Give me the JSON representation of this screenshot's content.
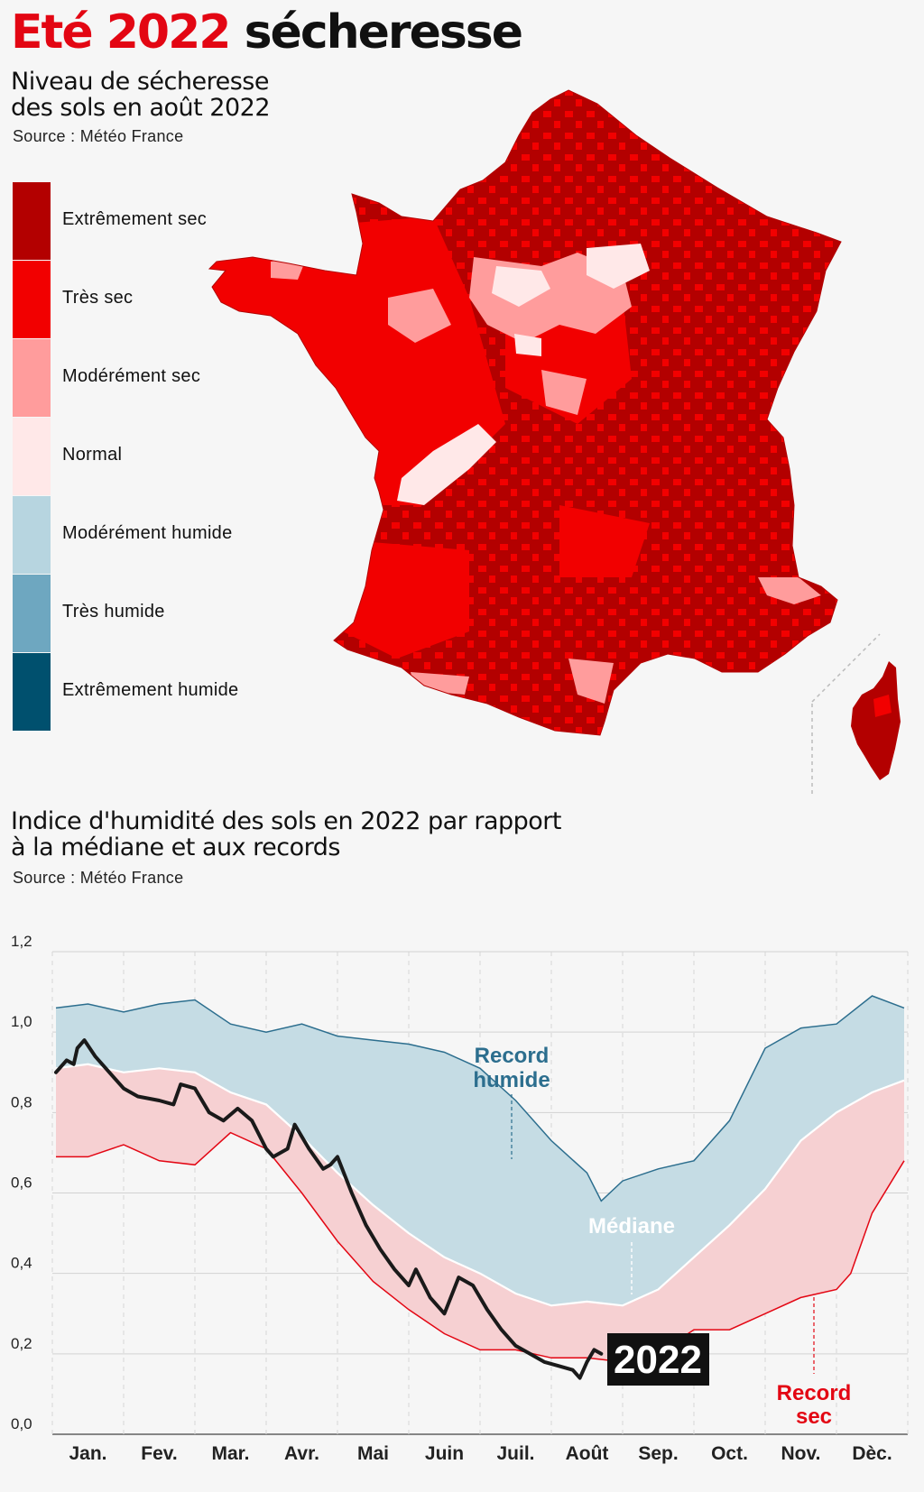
{
  "title": {
    "part1": "Eté 2022",
    "part2": "sécheresse"
  },
  "map_section": {
    "subtitle_line1": "Niveau de sécheresse",
    "subtitle_line2": "des sols  en août 2022",
    "source": "Source : Météo France",
    "legend": [
      {
        "label": "Extrêmement sec",
        "color": "#b30000"
      },
      {
        "label": "Très sec",
        "color": "#f20000"
      },
      {
        "label": "Modérément sec",
        "color": "#ff9c9c"
      },
      {
        "label": "Normal",
        "color": "#ffe8e8"
      },
      {
        "label": "Modérément humide",
        "color": "#b7d5e0"
      },
      {
        "label": "Très humide",
        "color": "#6ea7c0"
      },
      {
        "label": "Extrêmement humide",
        "color": "#00506e"
      }
    ]
  },
  "chart_section": {
    "subtitle_line1": "Indice d'humidité des sols en 2022 par rapport",
    "subtitle_line2": "à la médiane et aux records",
    "source": "Source : Météo France"
  },
  "chart_data": {
    "type": "area",
    "title": "Indice d'humidité des sols en 2022 par rapport à la médiane et aux records",
    "categories": [
      "Jan.",
      "Fev.",
      "Mar.",
      "Avr.",
      "Mai",
      "Juin",
      "Juil.",
      "Août",
      "Sep.",
      "Oct.",
      "Nov.",
      "Dèc."
    ],
    "yticks": [
      "0,0",
      "0,2",
      "0,4",
      "0,6",
      "0,8",
      "1,0",
      "1,2"
    ],
    "ylim": [
      0,
      1.2
    ],
    "xlim": [
      0,
      12
    ],
    "colors": {
      "record_wet": "#2c6e8e",
      "median_fill": "#c5dce4",
      "dry_fill": "#f6d0d2",
      "record_dry": "#e30613",
      "year_2022": "#1a1a1a"
    },
    "annotations": {
      "record_humide": [
        "Record",
        "humide"
      ],
      "mediane": "Médiane",
      "year_label": "2022",
      "record_sec": [
        "Record",
        "sec"
      ]
    },
    "series": [
      {
        "name": "Record humide",
        "x": [
          0.05,
          0.5,
          1,
          1.5,
          2,
          2.5,
          3,
          3.5,
          4,
          4.5,
          5,
          5.5,
          6,
          6.5,
          7,
          7.5,
          7.7,
          8,
          8.5,
          9,
          9.5,
          10,
          10.5,
          11,
          11.5,
          11.95
        ],
        "values": [
          1.06,
          1.07,
          1.05,
          1.07,
          1.08,
          1.02,
          1.0,
          1.02,
          0.99,
          0.98,
          0.97,
          0.95,
          0.91,
          0.83,
          0.73,
          0.65,
          0.58,
          0.63,
          0.66,
          0.68,
          0.78,
          0.96,
          1.01,
          1.02,
          1.09,
          1.06
        ]
      },
      {
        "name": "Médiane",
        "x": [
          0.05,
          0.5,
          1,
          1.5,
          2,
          2.5,
          3,
          3.5,
          4,
          4.5,
          5,
          5.5,
          6,
          6.5,
          7,
          7.5,
          8,
          8.5,
          9,
          9.5,
          10,
          10.5,
          11,
          11.5,
          11.95
        ],
        "values": [
          0.91,
          0.92,
          0.9,
          0.91,
          0.9,
          0.85,
          0.82,
          0.74,
          0.65,
          0.57,
          0.5,
          0.44,
          0.4,
          0.35,
          0.32,
          0.33,
          0.32,
          0.36,
          0.44,
          0.52,
          0.61,
          0.73,
          0.8,
          0.85,
          0.88
        ]
      },
      {
        "name": "Record sec",
        "x": [
          0.05,
          0.5,
          1,
          1.5,
          2,
          2.5,
          3,
          3.5,
          4,
          4.5,
          5,
          5.5,
          6,
          6.5,
          7,
          7.5,
          8,
          8.5,
          9,
          9.5,
          10,
          10.5,
          11,
          11.2,
          11.5,
          11.95
        ],
        "values": [
          0.69,
          0.69,
          0.72,
          0.68,
          0.67,
          0.75,
          0.71,
          0.6,
          0.48,
          0.38,
          0.31,
          0.25,
          0.21,
          0.21,
          0.19,
          0.19,
          0.18,
          0.2,
          0.26,
          0.26,
          0.3,
          0.34,
          0.36,
          0.4,
          0.55,
          0.68
        ]
      },
      {
        "name": "2022",
        "x": [
          0.05,
          0.2,
          0.3,
          0.35,
          0.45,
          0.6,
          0.8,
          1,
          1.2,
          1.5,
          1.7,
          1.8,
          2,
          2.2,
          2.4,
          2.6,
          2.8,
          3,
          3.1,
          3.3,
          3.4,
          3.6,
          3.8,
          3.9,
          4,
          4.2,
          4.4,
          4.6,
          4.8,
          5,
          5.1,
          5.3,
          5.5,
          5.7,
          5.9,
          6.1,
          6.3,
          6.5,
          6.7,
          6.9,
          7.1,
          7.3,
          7.4,
          7.5,
          7.6,
          7.7
        ],
        "values": [
          0.9,
          0.93,
          0.92,
          0.96,
          0.98,
          0.94,
          0.9,
          0.86,
          0.84,
          0.83,
          0.82,
          0.87,
          0.86,
          0.8,
          0.78,
          0.81,
          0.78,
          0.71,
          0.69,
          0.71,
          0.77,
          0.71,
          0.66,
          0.67,
          0.69,
          0.6,
          0.52,
          0.46,
          0.41,
          0.37,
          0.41,
          0.34,
          0.3,
          0.39,
          0.37,
          0.31,
          0.26,
          0.22,
          0.2,
          0.18,
          0.17,
          0.16,
          0.14,
          0.18,
          0.21,
          0.2
        ]
      }
    ]
  }
}
